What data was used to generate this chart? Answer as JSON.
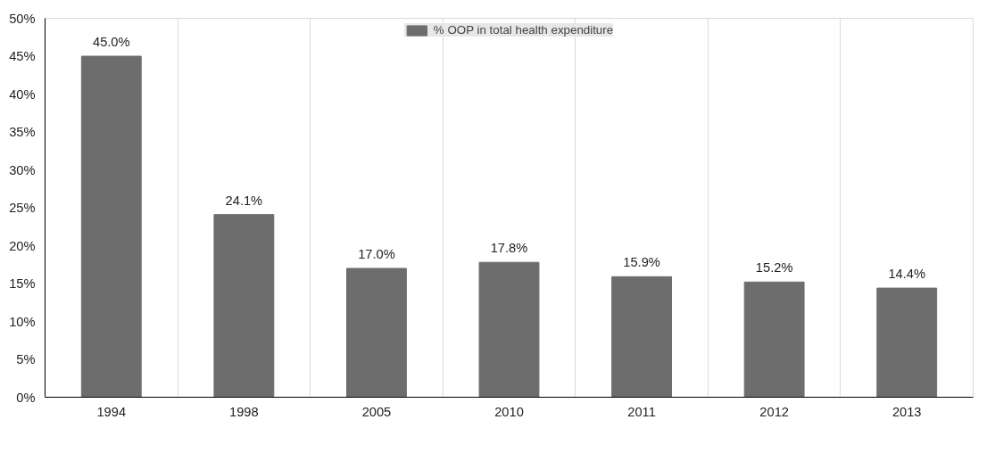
{
  "chart_data": {
    "type": "bar",
    "categories": [
      "1994",
      "1998",
      "2005",
      "2010",
      "2011",
      "2012",
      "2013"
    ],
    "series": [
      {
        "name": "% OOP in total health expenditure",
        "color": "#6d6d6d",
        "values": [
          45.0,
          24.1,
          17.0,
          17.8,
          15.9,
          15.2,
          14.4
        ],
        "value_labels": [
          "45.0%",
          "24.1%",
          "17.0%",
          "17.8%",
          "15.9%",
          "15.2%",
          "14.4%"
        ]
      }
    ],
    "ylim": [
      0,
      50
    ],
    "yticks": [
      {
        "value": 0,
        "label": "0%"
      },
      {
        "value": 5,
        "label": "5%"
      },
      {
        "value": 10,
        "label": "10%"
      },
      {
        "value": 15,
        "label": "15%"
      },
      {
        "value": 20,
        "label": "20%"
      },
      {
        "value": 25,
        "label": "25%"
      },
      {
        "value": 30,
        "label": "30%"
      },
      {
        "value": 35,
        "label": "35%"
      },
      {
        "value": 40,
        "label": "40%"
      },
      {
        "value": 45,
        "label": "45%"
      },
      {
        "value": 50,
        "label": "50%"
      }
    ],
    "grid": "x",
    "legend": "top"
  }
}
